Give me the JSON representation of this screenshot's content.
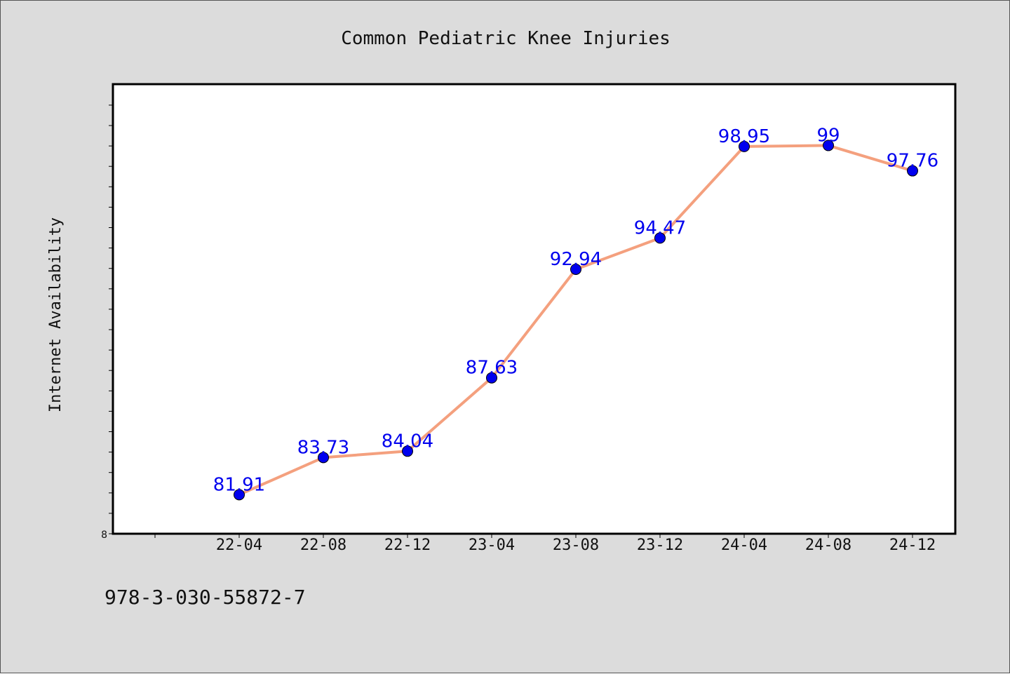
{
  "chart_data": {
    "type": "line",
    "title": "Common Pediatric Knee Injuries",
    "xlabel": "",
    "ylabel": "Internet Availability",
    "categories": [
      "22-04",
      "22-08",
      "22-12",
      "23-04",
      "23-08",
      "23-12",
      "24-04",
      "24-08",
      "24-12"
    ],
    "series": [
      {
        "values": [
          81.91,
          83.73,
          84.04,
          87.63,
          92.94,
          94.47,
          98.95,
          99,
          97.76
        ],
        "labels": [
          "81.91",
          "83.73",
          "84.04",
          "87.63",
          "92.94",
          "94.47",
          "98.95",
          "99",
          "97.76"
        ]
      }
    ],
    "y_tick_label": "8",
    "ylim": [
      80,
      102
    ],
    "grid": false,
    "colors": {
      "line": "#f4a07e",
      "marker": "#0000ee",
      "data_label": "#0000ee",
      "plot_background": "#ffffff",
      "page_background": "#dcdcdc"
    }
  },
  "footer": {
    "code": "978-3-030-55872-7"
  }
}
